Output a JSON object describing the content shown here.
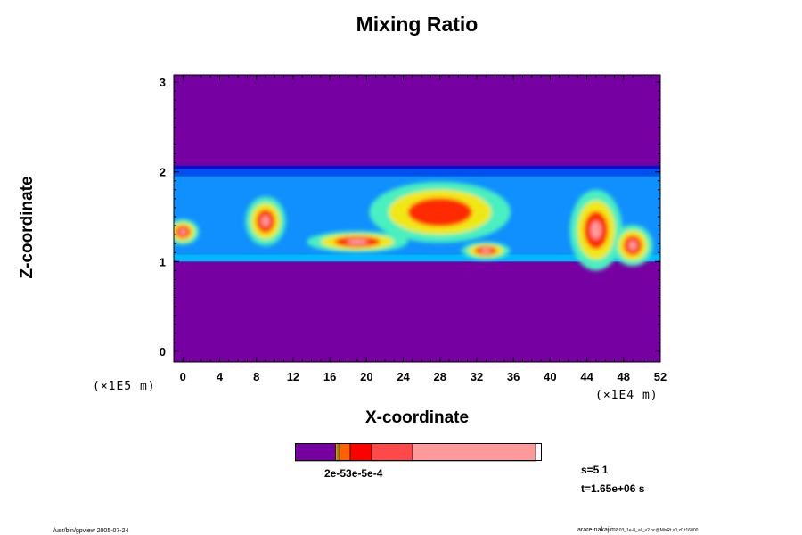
{
  "chart_data": {
    "type": "heatmap",
    "title": "Mixing Ratio",
    "xlabel": "X-coordinate",
    "ylabel": "Z-coordinate",
    "x_unit": "(×1E4 m)",
    "z_unit": "(×1E5 m)",
    "xlim": [
      -1,
      52
    ],
    "ylim": [
      -0.12,
      3.08
    ],
    "x_ticks": [
      0,
      4,
      8,
      12,
      16,
      20,
      24,
      28,
      32,
      36,
      40,
      44,
      48,
      52
    ],
    "y_ticks": [
      0,
      1,
      2,
      3
    ],
    "layer": {
      "z_bottom": 1.0,
      "z_top": 2.07
    },
    "features": [
      {
        "x": 9,
        "z": 1.45,
        "level": 5,
        "rx": 1.0,
        "rz": 0.12
      },
      {
        "x": 19,
        "z": 1.22,
        "level": 5,
        "rx": 2.5,
        "rz": 0.05
      },
      {
        "x": 28,
        "z": 1.55,
        "level": 4,
        "rx": 3.5,
        "rz": 0.15
      },
      {
        "x": 33,
        "z": 1.12,
        "level": 5,
        "rx": 1.2,
        "rz": 0.04
      },
      {
        "x": 45,
        "z": 1.35,
        "level": 5,
        "rx": 1.3,
        "rz": 0.2
      },
      {
        "x": 49,
        "z": 1.18,
        "level": 5,
        "rx": 1.0,
        "rz": 0.1
      },
      {
        "x": 0,
        "z": 1.33,
        "level": 5,
        "rx": 0.8,
        "rz": 0.06
      }
    ],
    "colorbar": {
      "label": "2e-53e-5e-4",
      "colors": [
        "#7700a3",
        "#ffff00",
        "#ffa500",
        "#ff6000",
        "#ff0000",
        "#ff4848",
        "#ff9a9a"
      ],
      "widths": [
        46,
        2,
        2,
        12,
        24,
        46,
        138
      ]
    }
  },
  "info": {
    "s": "s=5 1",
    "t": "t=1.65e+06 s"
  },
  "footer": {
    "left": "/usr/bin/gpview 2005-07-24",
    "right": "arare-nakajima",
    "right_small": "03_1e-8_all_v2.nc@MixRt,x0,z0,t16000"
  }
}
